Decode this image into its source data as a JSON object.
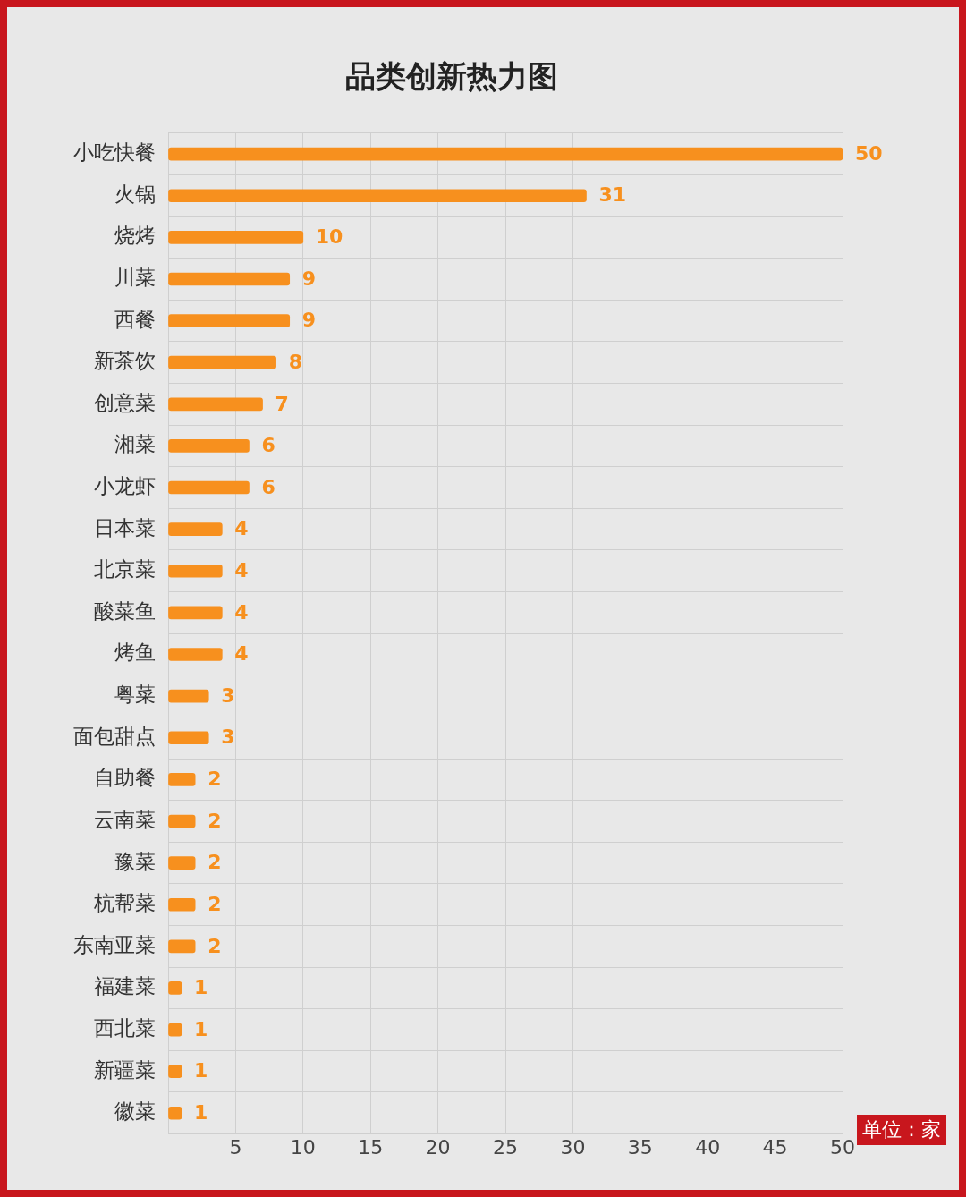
{
  "chart_data": {
    "type": "bar",
    "orientation": "horizontal",
    "title": "品类创新热力图",
    "categories": [
      "小吃快餐",
      "火锅",
      "烧烤",
      "川菜",
      "西餐",
      "新茶饮",
      "创意菜",
      "湘菜",
      "小龙虾",
      "日本菜",
      "北京菜",
      "酸菜鱼",
      "烤鱼",
      "粤菜",
      "面包甜点",
      "自助餐",
      "云南菜",
      "豫菜",
      "杭帮菜",
      "东南亚菜",
      "福建菜",
      "西北菜",
      "新疆菜",
      "徽菜"
    ],
    "values": [
      50,
      31,
      10,
      9,
      9,
      8,
      7,
      6,
      6,
      4,
      4,
      4,
      4,
      3,
      3,
      2,
      2,
      2,
      2,
      2,
      1,
      1,
      1,
      1
    ],
    "color": "#f7901e",
    "xlim": [
      0,
      50
    ],
    "xticks": [
      {
        "value": 0,
        "label": null
      },
      5,
      10,
      15,
      20,
      25,
      30,
      35,
      40,
      45,
      50
    ],
    "grid": true,
    "data_labels": true,
    "annotations": [
      "单位：家"
    ]
  }
}
